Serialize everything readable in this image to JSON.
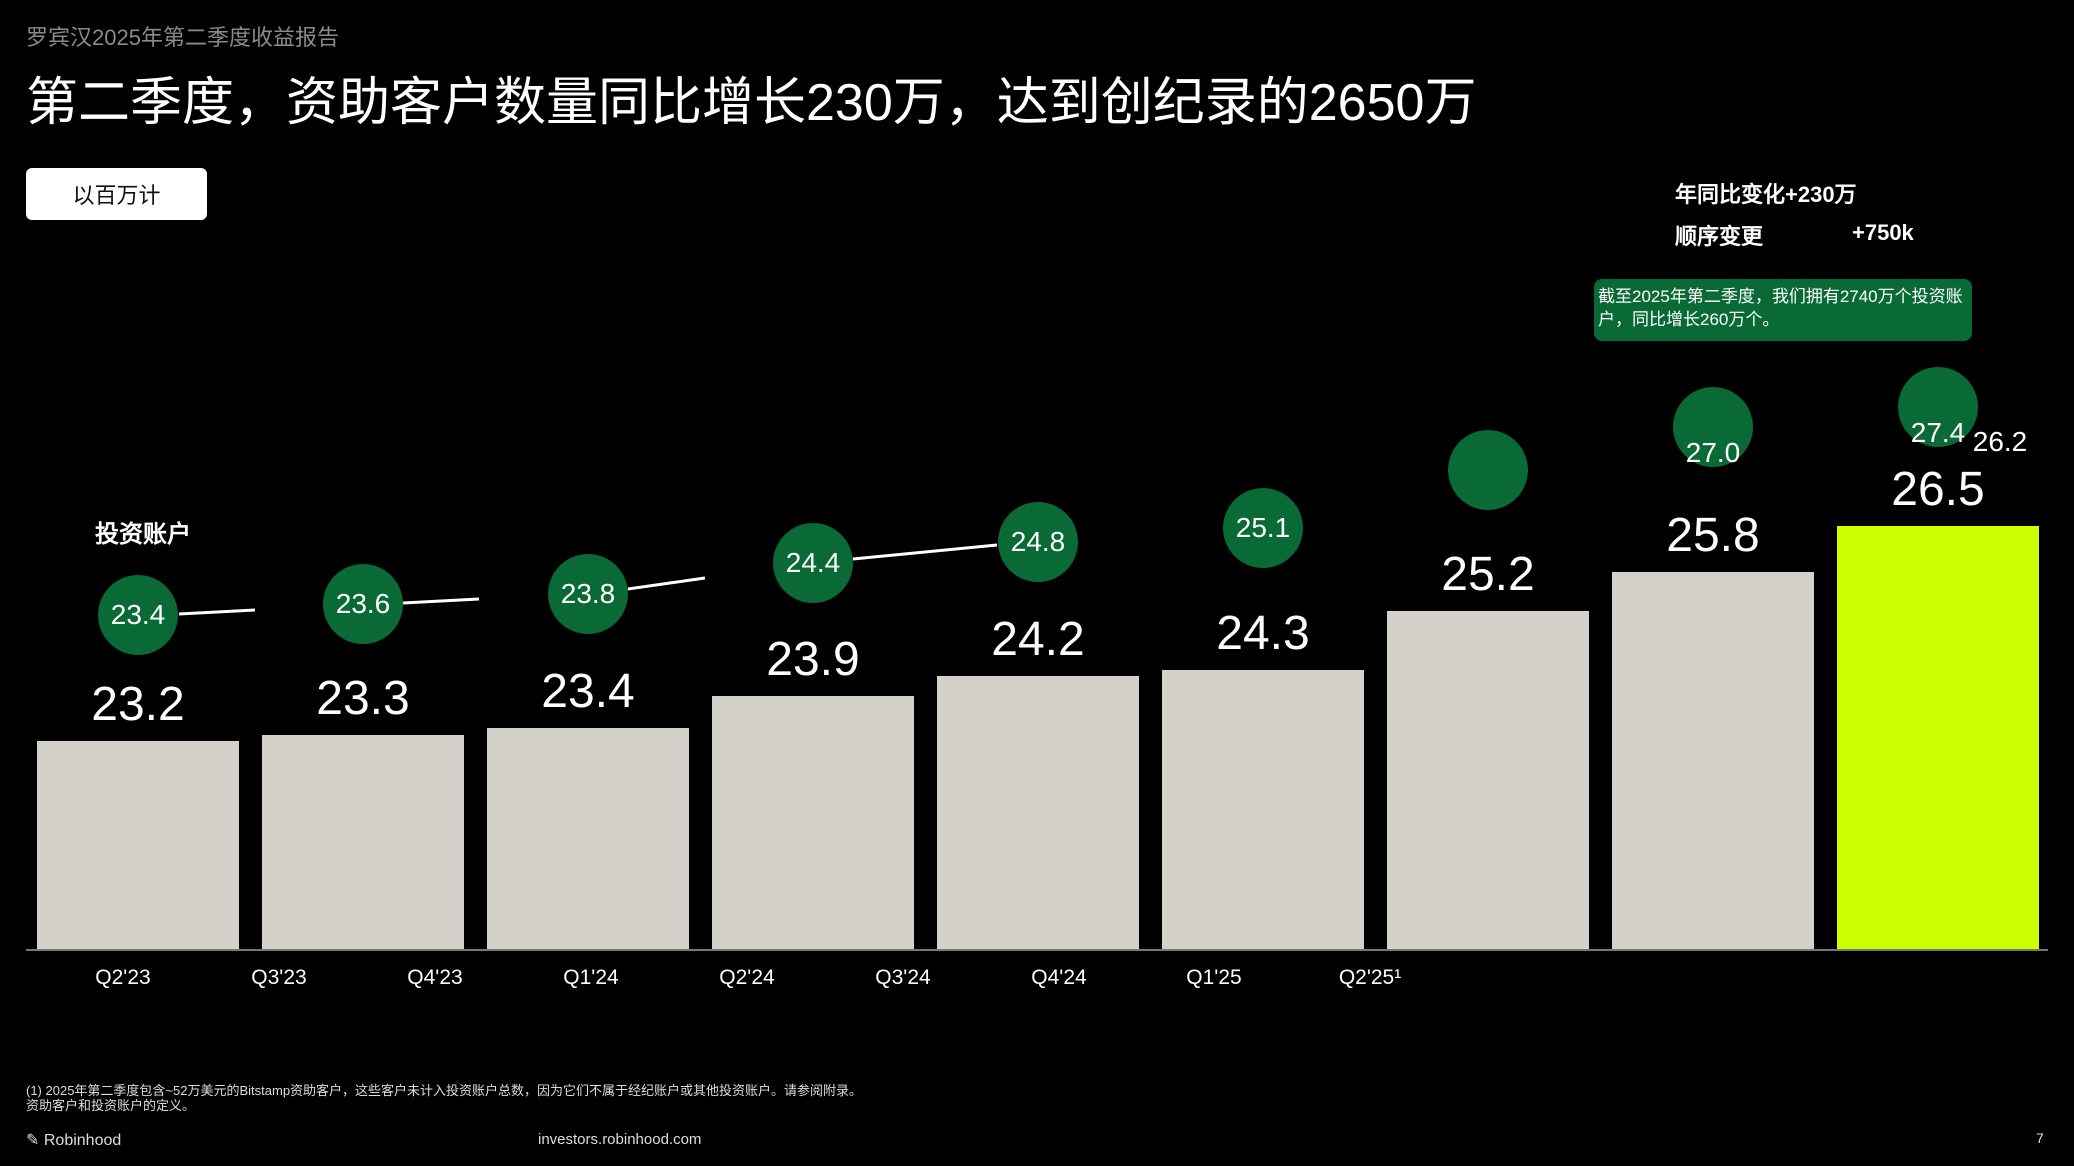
{
  "header": {
    "subtitle": "罗宾汉2025年第二季度收益报告",
    "title": "第二季度，资助客户数量同比增长230万，达到创纪录的2650万",
    "unit_button": "以百万计"
  },
  "kpis": {
    "yoy": "年同比变化+230万",
    "sequential_label": "顺序变更",
    "sequential_value": "+750k",
    "note": "截至2025年第二季度，我们拥有2740万个投资账户，同比增长260万个。"
  },
  "colors": {
    "bar": "#d4d1ca",
    "highlight_bar": "#ccff00",
    "circle": "#0a6a35",
    "background": "#000000"
  },
  "chart_data": {
    "type": "bar",
    "title": "",
    "x_tick_labels": [
      "Q2'23",
      "Q3'23",
      "Q4'23",
      "Q1'24",
      "Q2'24",
      "Q3'24",
      "Q4'24",
      "Q1'25",
      "Q2'25¹"
    ],
    "values": [
      "23.2",
      "23.3",
      "23.4",
      "23.9",
      "24.2",
      "24.3",
      "25.2",
      "25.8",
      "26.5"
    ],
    "highlight_index": 8,
    "overlay_series": {
      "name": "投资账户",
      "markers": [
        "23.4",
        "23.6",
        "23.8",
        "24.4",
        "24.8",
        "25.1",
        "",
        "27.0",
        "27.4"
      ],
      "extra_label": "26.2"
    }
  },
  "footer": {
    "footnote_line1": "(1) 2025年第二季度包含~52万美元的Bitstamp资助客户，这些客户未计入投资账户总数，因为它们不属于经纪账户或其他投资账户。请参阅附录。",
    "footnote_line2": "资助客户和投资账户的定义。",
    "logo": "Robinhood",
    "url": "investors.robinhood.com",
    "page": "7"
  }
}
